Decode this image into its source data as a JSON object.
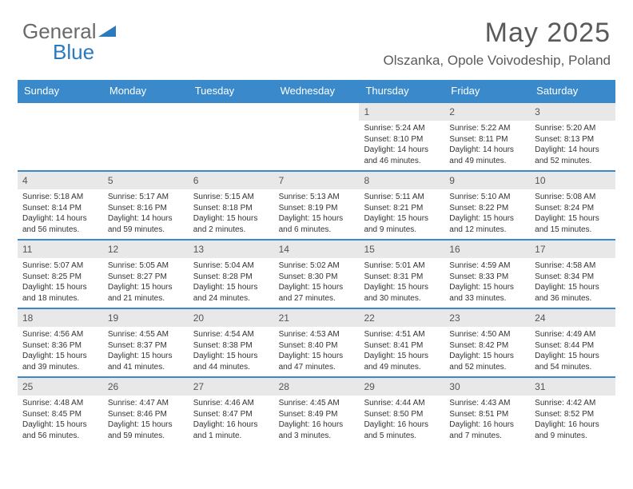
{
  "brand": {
    "part1": "General",
    "part2": "Blue"
  },
  "title": "May 2025",
  "location": "Olszanka, Opole Voivodeship, Poland",
  "colors": {
    "header_bg": "#3a8acb",
    "header_text": "#ffffff",
    "daynum_bg": "#e8e8e8",
    "brand_blue": "#2a7ac0",
    "text": "#333333",
    "title_color": "#5a5a5a",
    "rule": "#3a8acb"
  },
  "weekdays": [
    "Sunday",
    "Monday",
    "Tuesday",
    "Wednesday",
    "Thursday",
    "Friday",
    "Saturday"
  ],
  "weeks": [
    [
      {
        "n": "",
        "sr": "",
        "ss": "",
        "dl": ""
      },
      {
        "n": "",
        "sr": "",
        "ss": "",
        "dl": ""
      },
      {
        "n": "",
        "sr": "",
        "ss": "",
        "dl": ""
      },
      {
        "n": "",
        "sr": "",
        "ss": "",
        "dl": ""
      },
      {
        "n": "1",
        "sr": "5:24 AM",
        "ss": "8:10 PM",
        "dl": "14 hours and 46 minutes."
      },
      {
        "n": "2",
        "sr": "5:22 AM",
        "ss": "8:11 PM",
        "dl": "14 hours and 49 minutes."
      },
      {
        "n": "3",
        "sr": "5:20 AM",
        "ss": "8:13 PM",
        "dl": "14 hours and 52 minutes."
      }
    ],
    [
      {
        "n": "4",
        "sr": "5:18 AM",
        "ss": "8:14 PM",
        "dl": "14 hours and 56 minutes."
      },
      {
        "n": "5",
        "sr": "5:17 AM",
        "ss": "8:16 PM",
        "dl": "14 hours and 59 minutes."
      },
      {
        "n": "6",
        "sr": "5:15 AM",
        "ss": "8:18 PM",
        "dl": "15 hours and 2 minutes."
      },
      {
        "n": "7",
        "sr": "5:13 AM",
        "ss": "8:19 PM",
        "dl": "15 hours and 6 minutes."
      },
      {
        "n": "8",
        "sr": "5:11 AM",
        "ss": "8:21 PM",
        "dl": "15 hours and 9 minutes."
      },
      {
        "n": "9",
        "sr": "5:10 AM",
        "ss": "8:22 PM",
        "dl": "15 hours and 12 minutes."
      },
      {
        "n": "10",
        "sr": "5:08 AM",
        "ss": "8:24 PM",
        "dl": "15 hours and 15 minutes."
      }
    ],
    [
      {
        "n": "11",
        "sr": "5:07 AM",
        "ss": "8:25 PM",
        "dl": "15 hours and 18 minutes."
      },
      {
        "n": "12",
        "sr": "5:05 AM",
        "ss": "8:27 PM",
        "dl": "15 hours and 21 minutes."
      },
      {
        "n": "13",
        "sr": "5:04 AM",
        "ss": "8:28 PM",
        "dl": "15 hours and 24 minutes."
      },
      {
        "n": "14",
        "sr": "5:02 AM",
        "ss": "8:30 PM",
        "dl": "15 hours and 27 minutes."
      },
      {
        "n": "15",
        "sr": "5:01 AM",
        "ss": "8:31 PM",
        "dl": "15 hours and 30 minutes."
      },
      {
        "n": "16",
        "sr": "4:59 AM",
        "ss": "8:33 PM",
        "dl": "15 hours and 33 minutes."
      },
      {
        "n": "17",
        "sr": "4:58 AM",
        "ss": "8:34 PM",
        "dl": "15 hours and 36 minutes."
      }
    ],
    [
      {
        "n": "18",
        "sr": "4:56 AM",
        "ss": "8:36 PM",
        "dl": "15 hours and 39 minutes."
      },
      {
        "n": "19",
        "sr": "4:55 AM",
        "ss": "8:37 PM",
        "dl": "15 hours and 41 minutes."
      },
      {
        "n": "20",
        "sr": "4:54 AM",
        "ss": "8:38 PM",
        "dl": "15 hours and 44 minutes."
      },
      {
        "n": "21",
        "sr": "4:53 AM",
        "ss": "8:40 PM",
        "dl": "15 hours and 47 minutes."
      },
      {
        "n": "22",
        "sr": "4:51 AM",
        "ss": "8:41 PM",
        "dl": "15 hours and 49 minutes."
      },
      {
        "n": "23",
        "sr": "4:50 AM",
        "ss": "8:42 PM",
        "dl": "15 hours and 52 minutes."
      },
      {
        "n": "24",
        "sr": "4:49 AM",
        "ss": "8:44 PM",
        "dl": "15 hours and 54 minutes."
      }
    ],
    [
      {
        "n": "25",
        "sr": "4:48 AM",
        "ss": "8:45 PM",
        "dl": "15 hours and 56 minutes."
      },
      {
        "n": "26",
        "sr": "4:47 AM",
        "ss": "8:46 PM",
        "dl": "15 hours and 59 minutes."
      },
      {
        "n": "27",
        "sr": "4:46 AM",
        "ss": "8:47 PM",
        "dl": "16 hours and 1 minute."
      },
      {
        "n": "28",
        "sr": "4:45 AM",
        "ss": "8:49 PM",
        "dl": "16 hours and 3 minutes."
      },
      {
        "n": "29",
        "sr": "4:44 AM",
        "ss": "8:50 PM",
        "dl": "16 hours and 5 minutes."
      },
      {
        "n": "30",
        "sr": "4:43 AM",
        "ss": "8:51 PM",
        "dl": "16 hours and 7 minutes."
      },
      {
        "n": "31",
        "sr": "4:42 AM",
        "ss": "8:52 PM",
        "dl": "16 hours and 9 minutes."
      }
    ]
  ]
}
